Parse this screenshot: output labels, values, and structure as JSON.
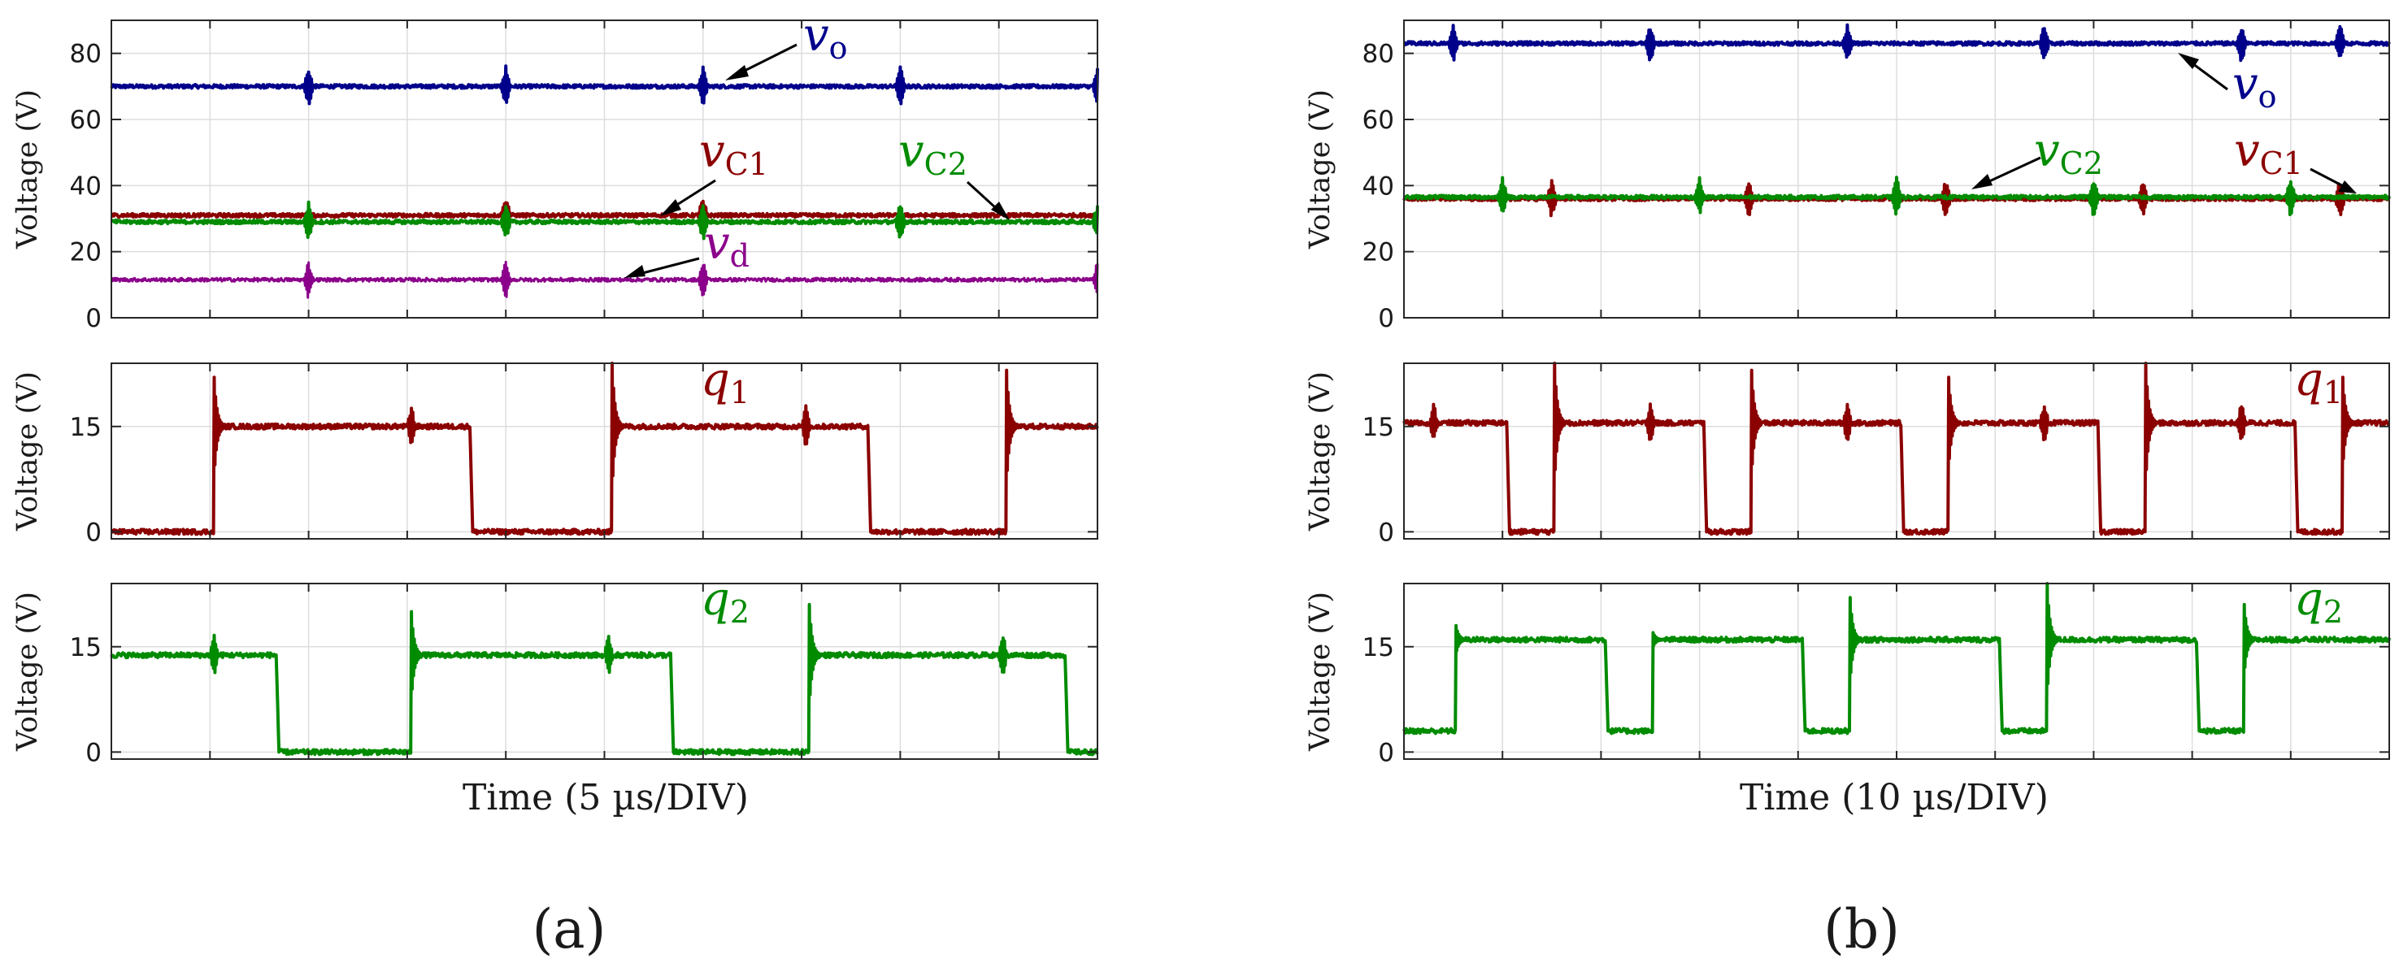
{
  "figure": {
    "panel_labels": [
      "(a)",
      "(b)"
    ],
    "y_axis_label": "Voltage (V)"
  },
  "colors": {
    "vo": "#00008b",
    "vC1": "#8b0000",
    "vC2": "#008b00",
    "vd": "#8b008b",
    "q1": "#8b0000",
    "q2": "#008b00",
    "grid": "#dddddd",
    "axis": "#262626"
  },
  "chart_data": [
    {
      "id": "a-top",
      "type": "line",
      "panel": "(a)",
      "xlabel": "",
      "ylabel": "Voltage (V)",
      "ylim": [
        0,
        90
      ],
      "yticks": [
        0,
        20,
        40,
        60,
        80
      ],
      "xlim": [
        0,
        25
      ],
      "x_unit": "µs",
      "series": [
        {
          "name": "vo",
          "label_main": "v",
          "label_sub": "o",
          "color_key": "vo",
          "level": 70,
          "spikes_at": [
            5,
            10,
            15,
            20,
            25
          ]
        },
        {
          "name": "vC1",
          "label_main": "v",
          "label_sub": "C1",
          "color_key": "vC1",
          "level": 31,
          "spikes_at": [
            10,
            15
          ]
        },
        {
          "name": "vC2",
          "label_main": "v",
          "label_sub": "C2",
          "color_key": "vC2",
          "level": 29,
          "spikes_at": [
            5,
            10,
            15,
            20,
            25
          ]
        },
        {
          "name": "vd",
          "label_main": "v",
          "label_sub": "d",
          "color_key": "vd",
          "level": 11.5,
          "spikes_at": [
            5,
            10,
            15,
            25
          ]
        }
      ]
    },
    {
      "id": "a-q1",
      "type": "line",
      "panel": "(a)",
      "xlabel": "",
      "ylabel": "Voltage (V)",
      "ylim": [
        -1,
        24
      ],
      "yticks": [
        0,
        15
      ],
      "xlim": [
        0,
        25
      ],
      "series": [
        {
          "name": "q1",
          "label_main": "q",
          "label_sub": "1",
          "color_key": "q1",
          "high": 15,
          "low": 0,
          "rise": [
            [
              2.6,
              22
            ],
            [
              12.7,
              24
            ],
            [
              22.7,
              23
            ]
          ],
          "fall": [
            [
              9.1,
              15.6
            ],
            [
              19.2,
              15.3
            ]
          ],
          "ringing_at": [
            7.6,
            17.6
          ],
          "start_state": "low"
        }
      ]
    },
    {
      "id": "a-q2",
      "type": "line",
      "panel": "(a)",
      "xlabel": "Time (5 µs/DIV)",
      "ylabel": "Voltage (V)",
      "ylim": [
        -1,
        24
      ],
      "yticks": [
        0,
        15
      ],
      "xlim": [
        0,
        25
      ],
      "series": [
        {
          "name": "q2",
          "label_main": "q",
          "label_sub": "2",
          "color_key": "q2",
          "high": 13.8,
          "low": 0,
          "rise": [
            [
              7.6,
              20
            ],
            [
              17.7,
              21
            ]
          ],
          "fall": [
            [
              4.2,
              13.8
            ],
            [
              14.2,
              13.8
            ],
            [
              24.2,
              13.8
            ]
          ],
          "ringing_at": [
            2.6,
            12.6,
            22.6
          ],
          "start_state": "high"
        }
      ]
    },
    {
      "id": "b-top",
      "type": "line",
      "panel": "(b)",
      "xlabel": "",
      "ylabel": "Voltage (V)",
      "ylim": [
        0,
        90
      ],
      "yticks": [
        0,
        20,
        40,
        60,
        80
      ],
      "xlim": [
        0,
        100
      ],
      "series": [
        {
          "name": "vo",
          "label_main": "v",
          "label_sub": "o",
          "color_key": "vo",
          "level": 83,
          "spikes_at": [
            5,
            25,
            45,
            65,
            85,
            95
          ]
        },
        {
          "name": "vC1",
          "label_main": "v",
          "label_sub": "C1",
          "color_key": "vC1",
          "level": 36,
          "spikes_at": [
            15,
            35,
            55,
            75,
            95
          ]
        },
        {
          "name": "vC2",
          "label_main": "v",
          "label_sub": "C2",
          "color_key": "vC2",
          "level": 36.5,
          "spikes_at": [
            10,
            30,
            50,
            70,
            90
          ]
        }
      ]
    },
    {
      "id": "b-q1",
      "type": "line",
      "panel": "(b)",
      "xlabel": "",
      "ylabel": "Voltage (V)",
      "ylim": [
        -1,
        24
      ],
      "yticks": [
        0,
        15
      ],
      "xlim": [
        0,
        100
      ],
      "series": [
        {
          "name": "q1",
          "label_main": "q",
          "label_sub": "1",
          "color_key": "q1",
          "high": 15.5,
          "low": 0,
          "rise": [
            [
              15.3,
              24
            ],
            [
              35.3,
              23
            ],
            [
              55.3,
              22
            ],
            [
              75.3,
              24
            ],
            [
              95.3,
              22
            ]
          ],
          "fall": [
            [
              10.5,
              15.5
            ],
            [
              30.5,
              15.5
            ],
            [
              50.5,
              15.5
            ],
            [
              70.5,
              15.5
            ],
            [
              90.5,
              15.5
            ]
          ],
          "ringing_at": [
            3,
            25,
            45,
            65,
            85
          ],
          "start_state": "high"
        }
      ]
    },
    {
      "id": "b-q2",
      "type": "line",
      "panel": "(b)",
      "xlabel": "Time (10 µs/DIV)",
      "ylabel": "Voltage (V)",
      "ylim": [
        -1,
        24
      ],
      "yticks": [
        0,
        15
      ],
      "xlim": [
        0,
        100
      ],
      "series": [
        {
          "name": "q2",
          "label_main": "q",
          "label_sub": "2",
          "color_key": "q2",
          "high": 16,
          "low": 3,
          "rise": [
            [
              5.3,
              18
            ],
            [
              25.3,
              17
            ],
            [
              45.3,
              22
            ],
            [
              65.3,
              24
            ],
            [
              85.3,
              21
            ]
          ],
          "fall": [
            [
              20.5,
              16
            ],
            [
              40.5,
              16
            ],
            [
              60.5,
              16
            ],
            [
              80.5,
              16
            ]
          ],
          "ringing_at": [],
          "start_state": "low"
        }
      ]
    }
  ]
}
